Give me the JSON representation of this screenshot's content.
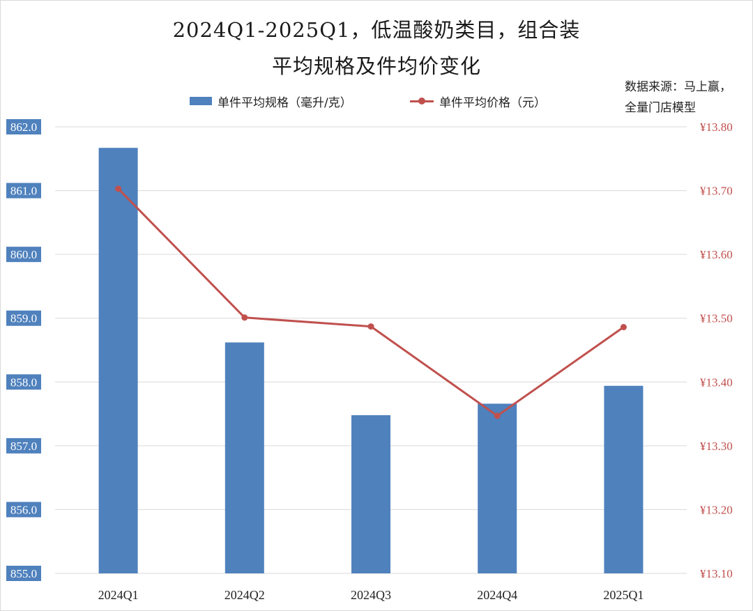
{
  "title_line1": "2024Q1-2025Q1，低温酸奶类目，组合装",
  "title_line2": "平均规格及件均价变化",
  "source_line1": "数据来源：马上赢，",
  "source_line2": "全量门店模型",
  "colors": {
    "bar": "#4f81bd",
    "line": "#c0504d",
    "left_axis_label_bg": "#4f81bd",
    "right_axis_text": "#c0504d",
    "grid": "#d9d9d9"
  },
  "chart_data": {
    "type": "bar",
    "categories": [
      "2024Q1",
      "2024Q2",
      "2024Q3",
      "2024Q4",
      "2025Q1"
    ],
    "series": [
      {
        "name": "单件平均规格（毫升/克）",
        "type": "bar",
        "axis": "left",
        "values": [
          861.67,
          858.62,
          857.48,
          857.66,
          857.94
        ]
      },
      {
        "name": "单件平均价格（元）",
        "type": "line",
        "axis": "right",
        "values": [
          13.703,
          13.501,
          13.487,
          13.347,
          13.486
        ]
      }
    ],
    "y_left": {
      "min": 855.0,
      "max": 862.0,
      "ticks": [
        "862.0",
        "861.0",
        "860.0",
        "859.0",
        "858.0",
        "857.0",
        "856.0",
        "855.0"
      ]
    },
    "y_right": {
      "min": 13.1,
      "max": 13.8,
      "ticks": [
        "¥13.80",
        "¥13.70",
        "¥13.60",
        "¥13.50",
        "¥13.40",
        "¥13.30",
        "¥13.20",
        "¥13.10"
      ]
    },
    "grid": true,
    "legend_position": "top"
  }
}
